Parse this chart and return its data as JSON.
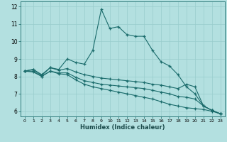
{
  "title": "",
  "xlabel": "Humidex (Indice chaleur)",
  "bg_color": "#b3e0e0",
  "line_color": "#1a6b6b",
  "grid_color": "#99cccc",
  "xlim": [
    -0.5,
    23.5
  ],
  "ylim": [
    5.7,
    12.3
  ],
  "xticks": [
    0,
    1,
    2,
    3,
    4,
    5,
    6,
    7,
    8,
    9,
    10,
    11,
    12,
    13,
    14,
    15,
    16,
    17,
    18,
    19,
    20,
    21,
    22,
    23
  ],
  "yticks": [
    6,
    7,
    8,
    9,
    10,
    11,
    12
  ],
  "line1_x": [
    0,
    1,
    2,
    3,
    4,
    5,
    6,
    7,
    8,
    9,
    10,
    11,
    12,
    13,
    14,
    15,
    16,
    17,
    18,
    19,
    20,
    21,
    22,
    23
  ],
  "line1_y": [
    8.3,
    8.4,
    8.1,
    8.5,
    8.4,
    9.0,
    8.8,
    8.7,
    9.5,
    11.85,
    10.75,
    10.85,
    10.4,
    10.3,
    10.3,
    9.5,
    8.85,
    8.6,
    8.1,
    7.4,
    7.0,
    6.3,
    6.05,
    5.85
  ],
  "line2_x": [
    0,
    1,
    2,
    3,
    4,
    5,
    6,
    7,
    8,
    9,
    10,
    11,
    12,
    13,
    14,
    15,
    16,
    17,
    18,
    19,
    20,
    21,
    22,
    23
  ],
  "line2_y": [
    8.3,
    8.4,
    8.05,
    8.5,
    8.35,
    8.45,
    8.25,
    8.1,
    8.0,
    7.9,
    7.85,
    7.8,
    7.75,
    7.7,
    7.65,
    7.55,
    7.5,
    7.4,
    7.3,
    7.55,
    7.4,
    6.3,
    6.05,
    5.85
  ],
  "line3_x": [
    0,
    1,
    2,
    3,
    4,
    5,
    6,
    7,
    8,
    9,
    10,
    11,
    12,
    13,
    14,
    15,
    16,
    17,
    18,
    19,
    20,
    21,
    22,
    23
  ],
  "line3_y": [
    8.3,
    8.3,
    8.0,
    8.3,
    8.2,
    8.2,
    7.95,
    7.75,
    7.65,
    7.55,
    7.5,
    7.45,
    7.4,
    7.35,
    7.3,
    7.2,
    7.1,
    7.0,
    6.85,
    6.8,
    6.7,
    6.3,
    6.05,
    5.85
  ],
  "line4_x": [
    0,
    1,
    2,
    3,
    4,
    5,
    6,
    7,
    8,
    9,
    10,
    11,
    12,
    13,
    14,
    15,
    16,
    17,
    18,
    19,
    20,
    21,
    22,
    23
  ],
  "line4_y": [
    8.3,
    8.25,
    8.0,
    8.3,
    8.15,
    8.1,
    7.8,
    7.55,
    7.4,
    7.3,
    7.2,
    7.1,
    7.0,
    6.9,
    6.8,
    6.7,
    6.55,
    6.4,
    6.3,
    6.2,
    6.15,
    6.1,
    6.0,
    5.85
  ]
}
